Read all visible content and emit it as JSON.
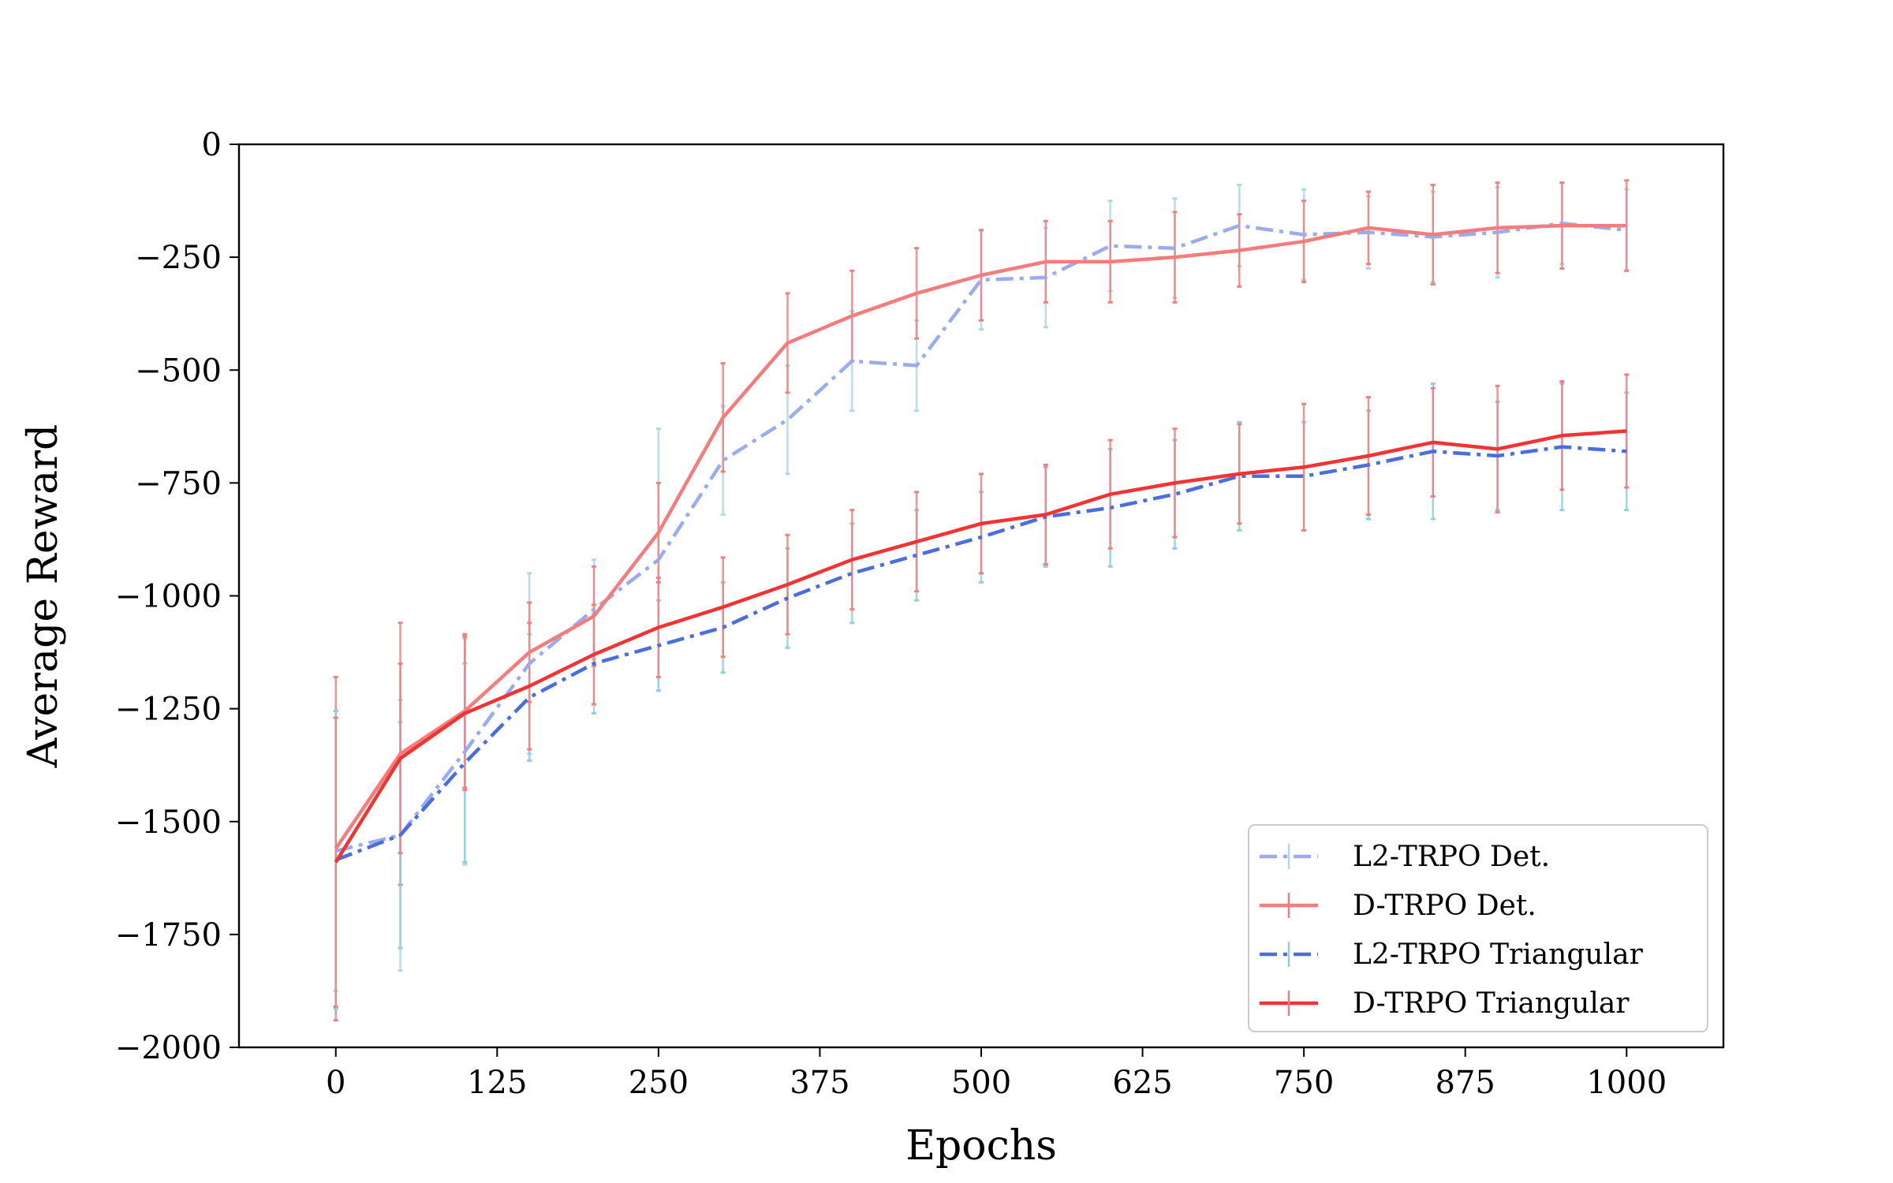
{
  "chart_data": {
    "type": "line",
    "title": "",
    "xlabel": "Epochs",
    "ylabel": "Average Reward",
    "xlim": [
      -75,
      1075
    ],
    "ylim": [
      -2000,
      0
    ],
    "xticks": [
      0,
      125,
      250,
      375,
      500,
      625,
      750,
      875,
      1000
    ],
    "yticks": [
      0,
      -250,
      -500,
      -750,
      -1000,
      -1250,
      -1500,
      -1750,
      -2000
    ],
    "grid": false,
    "legend_position": "bottom-right",
    "x": [
      0,
      50,
      100,
      150,
      200,
      250,
      300,
      350,
      400,
      450,
      500,
      550,
      600,
      650,
      700,
      750,
      800,
      850,
      900,
      950,
      1000
    ],
    "series": [
      {
        "name": "L2-TRPO Det.",
        "color": "#9aabee",
        "line_style": "dashdot",
        "errbar_color": "#add8e6",
        "values": [
          -1565,
          -1530,
          -1345,
          -1150,
          -1030,
          -920,
          -700,
          -610,
          -480,
          -490,
          -300,
          -295,
          -225,
          -230,
          -180,
          -200,
          -195,
          -205,
          -195,
          -175,
          -190
        ],
        "errors": [
          310,
          300,
          250,
          200,
          110,
          290,
          120,
          120,
          110,
          100,
          110,
          110,
          100,
          110,
          90,
          100,
          80,
          100,
          100,
          90,
          90
        ]
      },
      {
        "name": "D-TRPO Det.",
        "color": "#f47c7c",
        "line_style": "solid",
        "errbar_color": "#f08080",
        "values": [
          -1560,
          -1350,
          -1255,
          -1125,
          -1045,
          -860,
          -605,
          -440,
          -380,
          -330,
          -290,
          -260,
          -260,
          -250,
          -235,
          -215,
          -185,
          -200,
          -185,
          -180,
          -180
        ],
        "errors": [
          380,
          290,
          170,
          110,
          110,
          110,
          120,
          110,
          100,
          100,
          100,
          90,
          90,
          100,
          80,
          90,
          80,
          110,
          100,
          95,
          100
        ]
      },
      {
        "name": "L2-TRPO Triangular",
        "color": "#4a6ede",
        "line_style": "dashdot",
        "errbar_color": "#8fcfe0",
        "values": [
          -1585,
          -1530,
          -1370,
          -1225,
          -1150,
          -1110,
          -1070,
          -1005,
          -950,
          -910,
          -870,
          -825,
          -805,
          -775,
          -735,
          -735,
          -710,
          -680,
          -690,
          -670,
          -680
        ],
        "errors": [
          330,
          250,
          220,
          140,
          110,
          100,
          100,
          110,
          110,
          100,
          100,
          110,
          130,
          120,
          120,
          120,
          120,
          150,
          120,
          140,
          130
        ]
      },
      {
        "name": "D-TRPO Triangular",
        "color": "#f03434",
        "line_style": "solid",
        "errbar_color": "#f08080",
        "values": [
          -1590,
          -1360,
          -1260,
          -1200,
          -1130,
          -1070,
          -1025,
          -975,
          -920,
          -880,
          -840,
          -820,
          -775,
          -750,
          -730,
          -715,
          -690,
          -660,
          -675,
          -645,
          -635
        ],
        "errors": [
          320,
          210,
          170,
          140,
          110,
          110,
          110,
          110,
          110,
          110,
          110,
          110,
          120,
          120,
          110,
          140,
          130,
          120,
          140,
          120,
          125
        ]
      }
    ]
  }
}
